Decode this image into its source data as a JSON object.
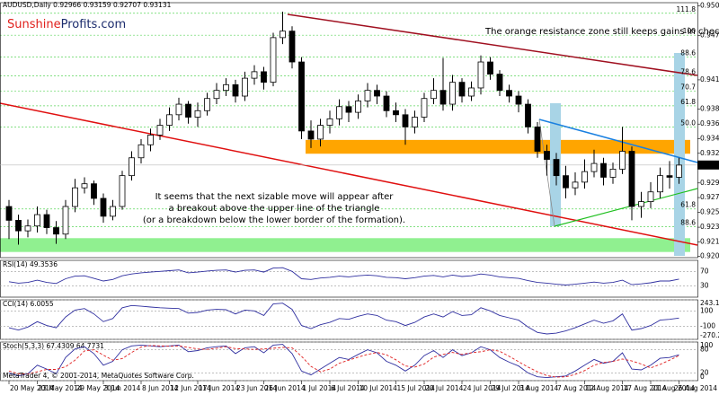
{
  "chart_data": {
    "type": "candlestick",
    "title": "AUDUSD,Daily  0.92966 0.93159 0.92707 0.93131",
    "logo": [
      "Sunshine",
      "Profits.com"
    ],
    "logo_colors": [
      "#e0201c",
      "#1a2a6c"
    ],
    "categories": [
      "20 May 2014",
      null,
      null,
      "23 May 2014",
      null,
      null,
      null,
      "29 May 2014",
      null,
      null,
      "3 Jun 2014",
      null,
      null,
      null,
      "8 Jun 2014",
      null,
      null,
      "12 Jun 2014",
      null,
      null,
      "17 Jun 2014",
      null,
      null,
      null,
      "23 Jun 2014",
      null,
      null,
      "26 Jun 2014",
      null,
      null,
      null,
      "1 Jul 2014",
      null,
      null,
      "6 Jul 2014",
      null,
      null,
      "10 Jul 2014",
      null,
      null,
      null,
      "15 Jul 2014",
      null,
      null,
      "20 Jul 2014",
      null,
      null,
      null,
      "24 Jul 2014",
      null,
      null,
      "29 Jul 2014",
      null,
      null,
      "3 Aug 2014",
      null,
      null,
      null,
      "7 Aug 2014",
      null,
      null,
      "12 Aug 2014",
      null,
      null,
      null,
      "17 Aug 2014",
      null,
      null,
      "21 Aug 2014",
      null,
      null,
      "26 Aug 2014"
    ],
    "open": [
      0.9262,
      0.9245,
      0.9232,
      0.9238,
      0.9252,
      0.9236,
      0.9228,
      0.9262,
      0.9285,
      0.929,
      0.9272,
      0.925,
      0.9262,
      0.93,
      0.9322,
      0.9338,
      0.935,
      0.9362,
      0.9375,
      0.9388,
      0.9372,
      0.938,
      0.9395,
      0.9405,
      0.9412,
      0.9398,
      0.942,
      0.9428,
      0.9415,
      0.947,
      0.9478,
      0.944,
      0.9355,
      0.9345,
      0.9362,
      0.937,
      0.9385,
      0.9378,
      0.9392,
      0.9405,
      0.9398,
      0.938,
      0.9375,
      0.936,
      0.9372,
      0.9395,
      0.9405,
      0.9388,
      0.9415,
      0.9398,
      0.9408,
      0.944,
      0.9425,
      0.9405,
      0.9398,
      0.9388,
      0.936,
      0.933,
      0.932,
      0.93,
      0.9285,
      0.9292,
      0.9305,
      0.9315,
      0.9298,
      0.9308,
      0.933,
      0.9262,
      0.9268,
      0.928,
      0.93,
      0.9298
    ],
    "high": [
      0.927,
      0.9252,
      0.9246,
      0.9262,
      0.9258,
      0.9244,
      0.927,
      0.9296,
      0.9298,
      0.9294,
      0.9278,
      0.927,
      0.9306,
      0.933,
      0.9345,
      0.9358,
      0.937,
      0.9384,
      0.9396,
      0.9392,
      0.939,
      0.9402,
      0.9414,
      0.942,
      0.9418,
      0.9428,
      0.9436,
      0.9434,
      0.9476,
      0.9502,
      0.9484,
      0.9446,
      0.9368,
      0.937,
      0.938,
      0.9394,
      0.9392,
      0.94,
      0.9414,
      0.9412,
      0.9404,
      0.939,
      0.9382,
      0.938,
      0.9402,
      0.942,
      0.9445,
      0.9424,
      0.942,
      0.9416,
      0.9448,
      0.9446,
      0.943,
      0.9412,
      0.9404,
      0.9394,
      0.9366,
      0.9338,
      0.9328,
      0.9312,
      0.9304,
      0.932,
      0.9332,
      0.9322,
      0.9316,
      0.936,
      0.9336,
      0.928,
      0.9292,
      0.931,
      0.9318,
      0.9322
    ],
    "low": [
      0.9222,
      0.9215,
      0.9224,
      0.923,
      0.9228,
      0.9216,
      0.9222,
      0.9255,
      0.9278,
      0.9264,
      0.9242,
      0.9245,
      0.9258,
      0.9294,
      0.9315,
      0.933,
      0.9344,
      0.9355,
      0.9368,
      0.9364,
      0.936,
      0.9374,
      0.9388,
      0.9398,
      0.939,
      0.9392,
      0.9412,
      0.9406,
      0.941,
      0.9462,
      0.9432,
      0.9345,
      0.9334,
      0.9336,
      0.9352,
      0.9362,
      0.9366,
      0.937,
      0.9384,
      0.9388,
      0.9372,
      0.9366,
      0.9338,
      0.9352,
      0.9366,
      0.9388,
      0.938,
      0.938,
      0.939,
      0.9392,
      0.94,
      0.9418,
      0.9398,
      0.939,
      0.9378,
      0.9352,
      0.9322,
      0.93,
      0.9288,
      0.9272,
      0.9276,
      0.9284,
      0.9298,
      0.9288,
      0.929,
      0.9302,
      0.9245,
      0.9248,
      0.926,
      0.9272,
      0.9284,
      0.929
    ],
    "close": [
      0.9245,
      0.9232,
      0.9238,
      0.9252,
      0.9236,
      0.9228,
      0.9262,
      0.9285,
      0.929,
      0.9272,
      0.925,
      0.9262,
      0.93,
      0.9322,
      0.9338,
      0.935,
      0.9362,
      0.9375,
      0.9388,
      0.9372,
      0.938,
      0.9395,
      0.9405,
      0.9412,
      0.9398,
      0.942,
      0.9428,
      0.9415,
      0.947,
      0.9478,
      0.944,
      0.9355,
      0.9345,
      0.9362,
      0.937,
      0.9385,
      0.9378,
      0.9392,
      0.9405,
      0.9398,
      0.938,
      0.9375,
      0.936,
      0.9372,
      0.9395,
      0.9405,
      0.9388,
      0.9415,
      0.9398,
      0.9408,
      0.944,
      0.9425,
      0.9405,
      0.9398,
      0.9388,
      0.936,
      0.933,
      0.932,
      0.93,
      0.9285,
      0.9292,
      0.9305,
      0.9315,
      0.9298,
      0.9308,
      0.933,
      0.9262,
      0.9268,
      0.928,
      0.93,
      0.9298,
      0.9313
    ],
    "ylim": [
      0.9199,
      0.9513
    ],
    "yticks": [
      {
        "value": 0.9509,
        "label": "0.95090"
      },
      0.94725,
      {
        "value": 0.9418,
        "label": "0.94180"
      },
      {
        "value": 0.9382,
        "label": "0.93820"
      },
      0.93635,
      0.93455,
      0.93275,
      {
        "value": 0.9291,
        "label": "0.92910"
      },
      {
        "value": 0.9273,
        "label": "0.92730"
      },
      {
        "value": 0.9255,
        "label": "0.92550"
      },
      0.92365,
      0.92185,
      0.92005
    ],
    "last_price": 0.93131,
    "resistance_zone": [
      0.9327,
      0.9344
    ],
    "resistance_color": "#ffa500",
    "support_zone": [
      0.9206,
      0.9223
    ],
    "support_color": "#90f090",
    "retracements": [
      {
        "label": "111.8",
        "price": 0.95
      },
      {
        "label": "100",
        "price": 0.9473
      },
      {
        "label": "88.6",
        "price": 0.9446
      },
      {
        "label": "78.6",
        "price": 0.9423
      },
      {
        "label": "70.7",
        "price": 0.9404
      },
      {
        "label": "61.8",
        "price": 0.9386
      },
      {
        "label": "50.0",
        "price": 0.936
      },
      {
        "label": "61.8",
        "price": 0.9259
      },
      {
        "label": "88.6",
        "price": 0.9237
      }
    ],
    "annotations": [
      "The orange resistance zone still keeps gains in check.",
      "It seems that the next sizable move will appear after",
      "a breakout above the upper line of the triangle",
      "(or a breakdown below the lower border of the formation)."
    ],
    "indicators": [
      {
        "title": "RSI(14) 49.3536",
        "ylim": [
          0,
          100
        ],
        "yticks": [
          70,
          30
        ],
        "series": [
          {
            "color": "#3030a0",
            "style": "solid",
            "values": [
              42,
              38,
              40,
              46,
              40,
              37,
              50,
              57,
              58,
              51,
              44,
              48,
              58,
              63,
              66,
              68,
              70,
              72,
              74,
              66,
              68,
              71,
              73,
              74,
              68,
              73,
              74,
              68,
              79,
              80,
              70,
              50,
              48,
              52,
              54,
              57,
              55,
              58,
              60,
              58,
              54,
              53,
              50,
              53,
              57,
              59,
              55,
              60,
              56,
              58,
              63,
              60,
              55,
              53,
              51,
              45,
              40,
              38,
              35,
              33,
              35,
              38,
              41,
              38,
              40,
              46,
              34,
              36,
              39,
              44,
              44,
              49
            ]
          }
        ]
      },
      {
        "title": "CCI(14) 6.0055",
        "ylim": [
          -270.2205,
          243.1966
        ],
        "yticks": [
          243.1966,
          100,
          -100,
          -270.2205
        ],
        "series": [
          {
            "color": "#3030a0",
            "style": "solid",
            "values": [
              -120,
              -150,
              -110,
              -40,
              -90,
              -120,
              20,
              110,
              130,
              60,
              -40,
              0,
              140,
              170,
              160,
              150,
              140,
              135,
              130,
              70,
              80,
              110,
              120,
              115,
              60,
              110,
              100,
              40,
              190,
              200,
              120,
              -90,
              -130,
              -80,
              -50,
              0,
              -10,
              30,
              60,
              40,
              -20,
              -40,
              -90,
              -50,
              20,
              60,
              20,
              90,
              40,
              50,
              140,
              100,
              40,
              10,
              -20,
              -110,
              -180,
              -200,
              -190,
              -160,
              -120,
              -70,
              -20,
              -60,
              -30,
              60,
              -150,
              -130,
              -90,
              -20,
              -10,
              6
            ]
          }
        ]
      },
      {
        "title": "Stoch(5,3,3) 67.4309 64.7731",
        "ylim": [
          0,
          100
        ],
        "yticks": [
          100,
          80,
          20,
          0
        ],
        "series": [
          {
            "color": "#3030a0",
            "style": "solid",
            "values": [
              20,
              12,
              18,
              40,
              30,
              18,
              60,
              82,
              88,
              70,
              40,
              50,
              80,
              90,
              92,
              90,
              88,
              90,
              92,
              75,
              78,
              85,
              88,
              90,
              70,
              85,
              88,
              72,
              92,
              94,
              70,
              25,
              15,
              30,
              45,
              60,
              55,
              68,
              80,
              72,
              50,
              40,
              25,
              40,
              65,
              78,
              60,
              80,
              65,
              72,
              88,
              80,
              60,
              48,
              38,
              20,
              10,
              8,
              10,
              12,
              25,
              40,
              55,
              45,
              50,
              72,
              30,
              28,
              40,
              58,
              60,
              67
            ]
          },
          {
            "color": "#e02020",
            "style": "dashed",
            "values": [
              25,
              18,
              17,
              23,
              29,
              29,
              36,
              53,
              77,
              80,
              66,
              53,
              57,
              73,
              87,
              91,
              90,
              89,
              90,
              86,
              82,
              81,
              84,
              88,
              83,
              82,
              81,
              82,
              84,
              86,
              85,
              63,
              37,
              23,
              30,
              45,
              53,
              61,
              68,
              73,
              67,
              54,
              38,
              35,
              43,
              61,
              68,
              73,
              68,
              72,
              75,
              80,
              76,
              63,
              49,
              35,
              23,
              13,
              9,
              10,
              16,
              26,
              40,
              47,
              50,
              56,
              51,
              43,
              33,
              42,
              53,
              65
            ]
          }
        ]
      }
    ],
    "footer": "MetaTrader 4, © 2001-2014, MetaQuotes Software Corp."
  }
}
